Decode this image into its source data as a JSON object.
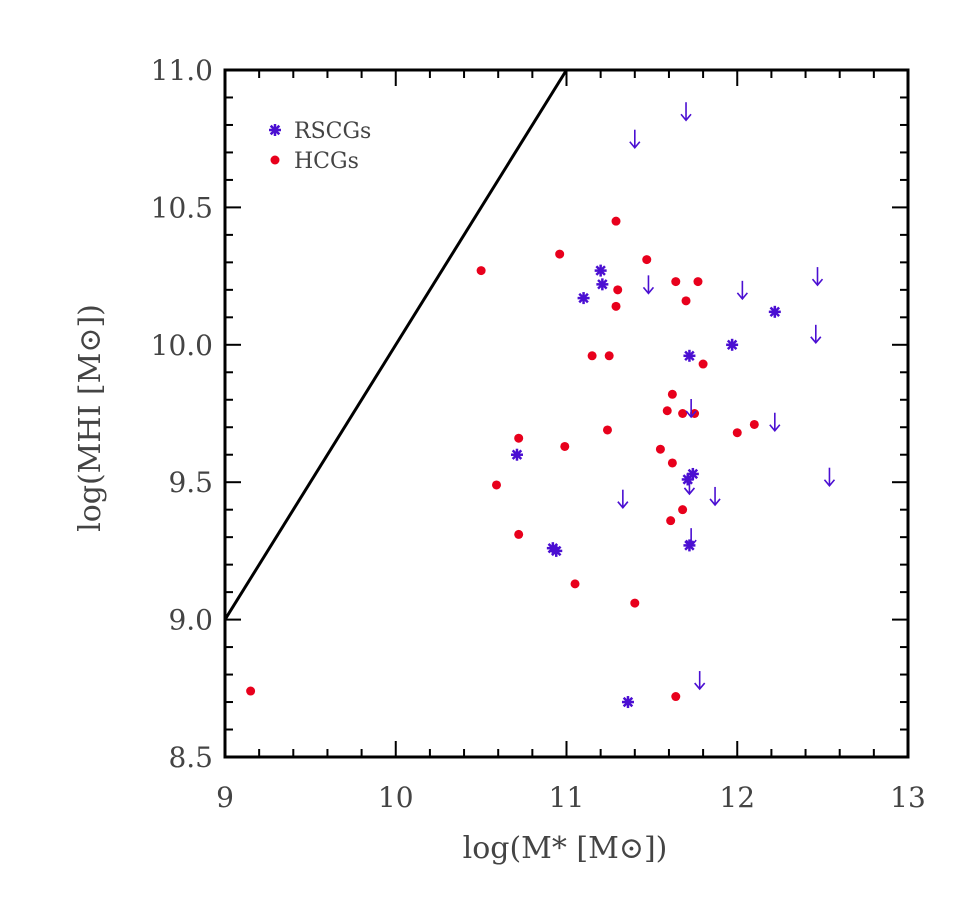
{
  "chart_data": {
    "type": "scatter",
    "xlabel": "log(M* [M⊙])",
    "ylabel": "log(MHI [M⊙])",
    "xlim": [
      9,
      13
    ],
    "ylim": [
      8.5,
      11.0
    ],
    "xticks": [
      9,
      10,
      11,
      12,
      13
    ],
    "yticks": [
      8.5,
      9.0,
      9.5,
      10.0,
      10.5,
      11.0
    ],
    "xtick_labels": [
      "9",
      "10",
      "11",
      "12",
      "13"
    ],
    "ytick_labels": [
      "8.5",
      "9.0",
      "9.5",
      "10.0",
      "10.5",
      "11.0"
    ],
    "line": {
      "name": "1:1 line",
      "x": [
        9.0,
        11.0
      ],
      "y": [
        9.0,
        11.0
      ]
    },
    "legend": {
      "location": "top-left",
      "entries": [
        "RSCGs",
        "HCGs"
      ]
    },
    "series": [
      {
        "name": "RSCGs",
        "marker": "asterisk",
        "color": "#4b0fd2",
        "points": [
          [
            11.1,
            10.17
          ],
          [
            11.2,
            10.27
          ],
          [
            11.21,
            10.22
          ],
          [
            12.22,
            10.12
          ],
          [
            11.97,
            10.0
          ],
          [
            11.72,
            9.96
          ],
          [
            10.71,
            9.6
          ],
          [
            11.74,
            9.53
          ],
          [
            11.71,
            9.51
          ],
          [
            10.92,
            9.26
          ],
          [
            10.94,
            9.25
          ],
          [
            11.72,
            9.27
          ],
          [
            11.36,
            8.7
          ]
        ]
      },
      {
        "name": "HCGs",
        "marker": "circle",
        "color": "#e8001c",
        "points": [
          [
            10.5,
            10.27
          ],
          [
            10.96,
            10.33
          ],
          [
            11.29,
            10.45
          ],
          [
            11.47,
            10.31
          ],
          [
            11.64,
            10.23
          ],
          [
            11.77,
            10.23
          ],
          [
            11.3,
            10.2
          ],
          [
            11.7,
            10.16
          ],
          [
            11.29,
            10.14
          ],
          [
            11.15,
            9.96
          ],
          [
            11.25,
            9.96
          ],
          [
            11.8,
            9.93
          ],
          [
            11.62,
            9.82
          ],
          [
            11.59,
            9.76
          ],
          [
            11.68,
            9.75
          ],
          [
            11.75,
            9.75
          ],
          [
            12.1,
            9.71
          ],
          [
            12.0,
            9.68
          ],
          [
            11.24,
            9.69
          ],
          [
            10.72,
            9.66
          ],
          [
            10.99,
            9.63
          ],
          [
            11.55,
            9.62
          ],
          [
            11.62,
            9.57
          ],
          [
            10.59,
            9.49
          ],
          [
            11.68,
            9.4
          ],
          [
            11.61,
            9.36
          ],
          [
            10.72,
            9.31
          ],
          [
            11.05,
            9.13
          ],
          [
            11.4,
            9.06
          ],
          [
            9.15,
            8.74
          ],
          [
            11.64,
            8.72
          ]
        ]
      },
      {
        "name": "upper limits",
        "marker": "down-arrow",
        "color": "#4b0fd2",
        "points": [
          [
            11.7,
            10.85
          ],
          [
            11.4,
            10.75
          ],
          [
            12.47,
            10.25
          ],
          [
            11.48,
            10.22
          ],
          [
            12.03,
            10.2
          ],
          [
            12.46,
            10.04
          ],
          [
            11.73,
            9.77
          ],
          [
            12.22,
            9.72
          ],
          [
            12.54,
            9.52
          ],
          [
            11.33,
            9.44
          ],
          [
            11.87,
            9.45
          ],
          [
            11.72,
            9.49
          ],
          [
            11.73,
            9.3
          ],
          [
            11.78,
            8.78
          ]
        ]
      }
    ]
  }
}
